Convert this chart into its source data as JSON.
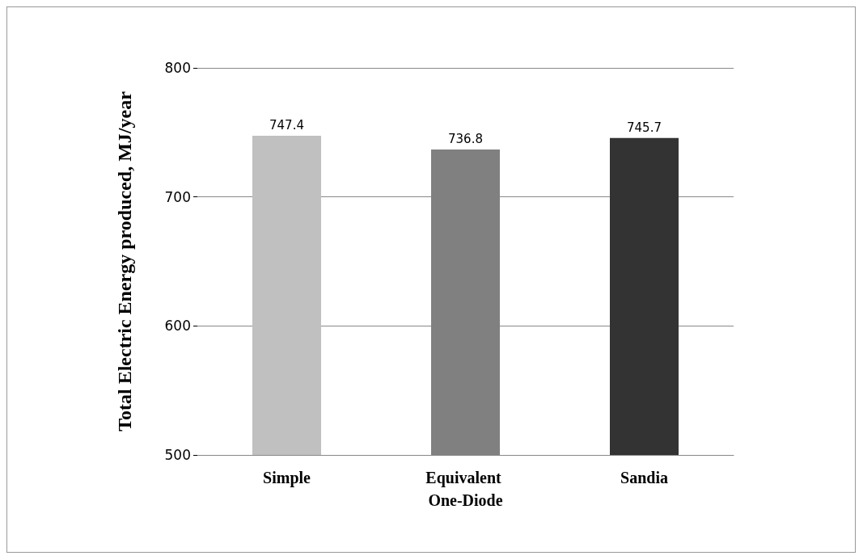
{
  "chart_data": {
    "type": "bar",
    "ylabel": "Total Electric Energy produced, MJ/year",
    "categories": [
      "Simple",
      "Equivalent One-Diode",
      "Sandia"
    ],
    "values": [
      747.4,
      736.8,
      745.7
    ],
    "colors": [
      "#c0c0c0",
      "#808080",
      "#333333"
    ],
    "ylim": [
      500,
      800
    ],
    "yticks": [
      500,
      600,
      700,
      800
    ],
    "grid": "y",
    "data_labels": true
  }
}
